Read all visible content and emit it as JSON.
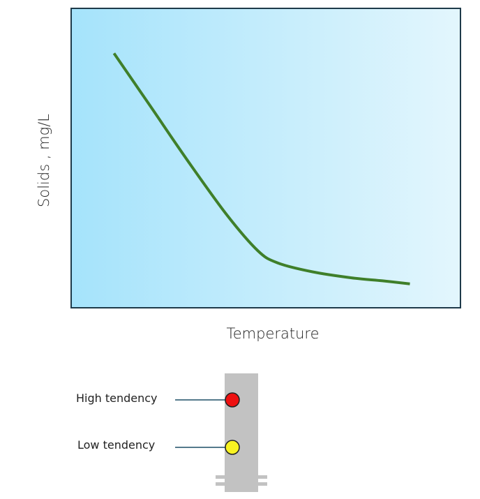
{
  "chart_data": {
    "type": "line",
    "title": "",
    "xlabel": "Temperature",
    "ylabel": "Solids , mg/L",
    "xlim": [
      0,
      100
    ],
    "ylim": [
      0,
      100
    ],
    "x_ticks_shown": false,
    "y_ticks_shown": false,
    "grid": false,
    "background": {
      "gradient_from": "#a5e3fb",
      "gradient_to": "#e3f6fd",
      "border": "#1e3a4a"
    },
    "series": [
      {
        "color": "#3f7f2a",
        "x": [
          11,
          20,
          30,
          40,
          48,
          53,
          62,
          72,
          80,
          87
        ],
        "y": [
          85,
          68,
          49,
          31,
          19,
          15,
          12,
          10,
          9,
          8
        ]
      }
    ]
  },
  "legend": {
    "items": [
      {
        "label": "High tendency",
        "color": "#ee1111"
      },
      {
        "label": "Low tendency",
        "color": "#f8f322"
      }
    ],
    "pole_color": "#c2c2c2",
    "leader_color": "#1d4f66"
  }
}
